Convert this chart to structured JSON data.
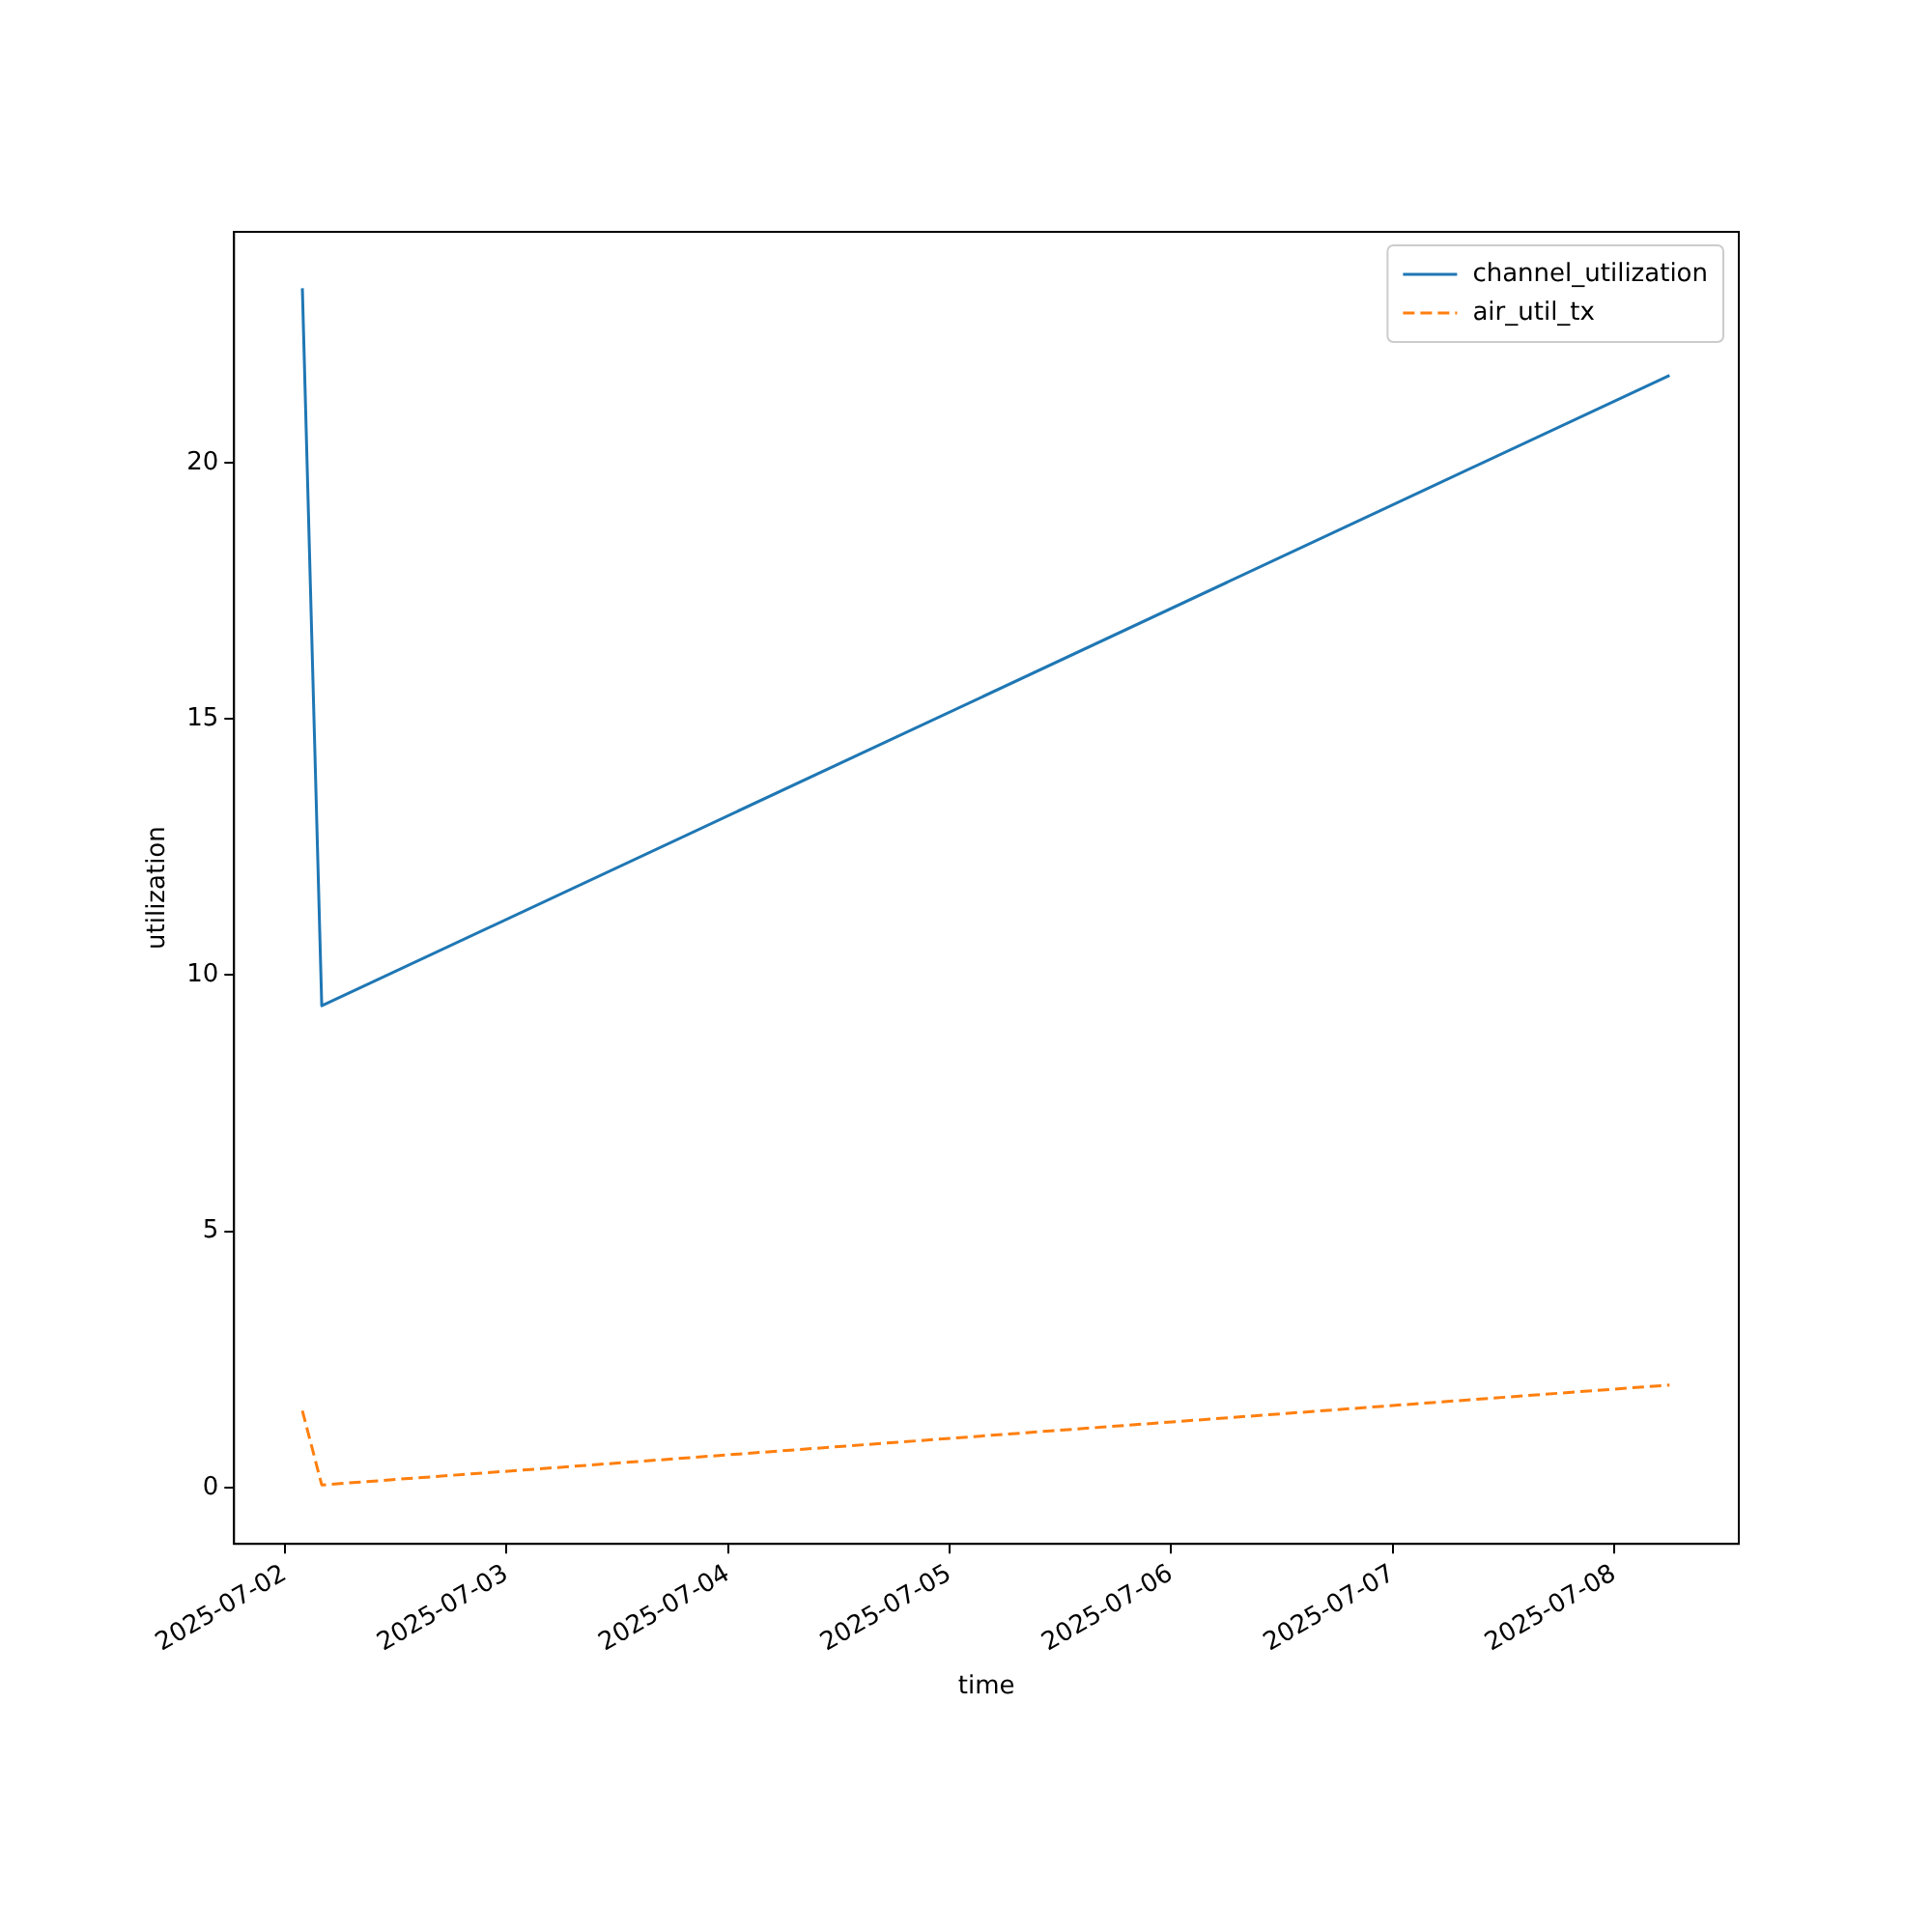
{
  "chart_data": {
    "type": "line",
    "xlabel": "time",
    "ylabel": "utilization",
    "xlim": [
      "2025-07-01T18:30",
      "2025-07-08T13:30"
    ],
    "xticks": [
      "2025-07-02",
      "2025-07-03",
      "2025-07-04",
      "2025-07-05",
      "2025-07-06",
      "2025-07-07",
      "2025-07-08"
    ],
    "ylim": [
      -1.1,
      24.5
    ],
    "yticks": [
      0,
      5,
      10,
      15,
      20
    ],
    "grid": false,
    "legend": "top right",
    "marker": "none",
    "series": [
      {
        "name": "channel_utilization",
        "color": "#1f77b4",
        "line_style": "solid",
        "x": [
          "2025-07-02T01:54",
          "2025-07-02T04:00",
          "2025-07-08T06:00"
        ],
        "values": [
          23.4,
          9.4,
          21.7
        ]
      },
      {
        "name": "air_util_tx",
        "color": "#ff7f0e",
        "line_style": "dashed",
        "x": [
          "2025-07-02T01:54",
          "2025-07-02T04:00",
          "2025-07-08T06:00"
        ],
        "values": [
          1.5,
          0.05,
          2.0
        ]
      }
    ]
  }
}
